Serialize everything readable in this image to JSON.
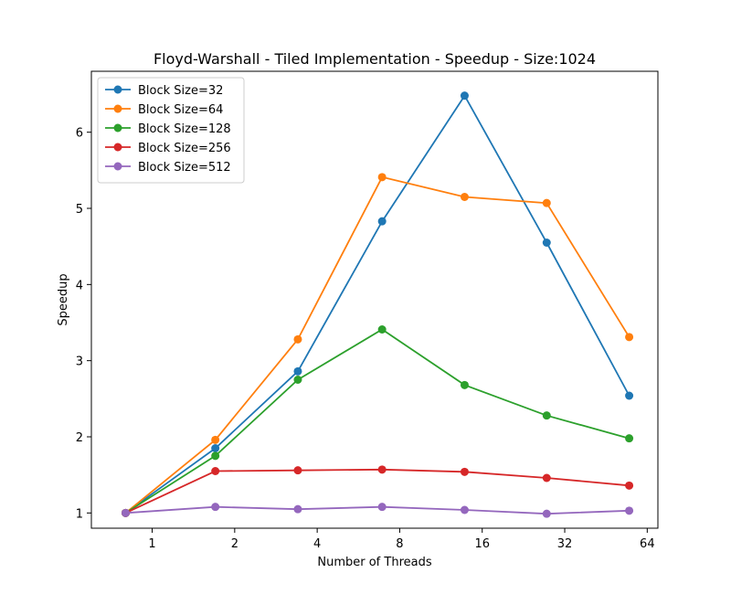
{
  "chart_data": {
    "type": "line",
    "title": "Floyd-Warshall - Tiled Implementation - Speedup - Size:1024",
    "xlabel": "Number of Threads",
    "ylabel": "Speedup",
    "x_scale": "log2",
    "x_ticks": [
      1,
      2,
      4,
      8,
      16,
      32,
      64
    ],
    "x_tick_labels": [
      "1",
      "2",
      "4",
      "8",
      "16",
      "32",
      "64"
    ],
    "y_ticks": [
      1,
      2,
      3,
      4,
      5,
      6
    ],
    "y_tick_labels": [
      "1",
      "2",
      "3",
      "4",
      "5",
      "6"
    ],
    "x": [
      0.8,
      1.7,
      3.4,
      6.9,
      13.8,
      27.5,
      55
    ],
    "xlim": [
      0.6,
      70
    ],
    "ylim": [
      0.8,
      6.8
    ],
    "grid": false,
    "legend_position": "upper-left",
    "series": [
      {
        "name": "Block Size=32",
        "color": "#1f77b4",
        "values": [
          1.0,
          1.85,
          2.86,
          4.83,
          6.48,
          4.55,
          2.54
        ]
      },
      {
        "name": "Block Size=64",
        "color": "#ff7f0e",
        "values": [
          1.0,
          1.96,
          3.28,
          5.41,
          5.15,
          5.07,
          3.31
        ]
      },
      {
        "name": "Block Size=128",
        "color": "#2ca02c",
        "values": [
          1.0,
          1.75,
          2.75,
          3.41,
          2.68,
          2.28,
          1.98
        ]
      },
      {
        "name": "Block Size=256",
        "color": "#d62728",
        "values": [
          1.0,
          1.55,
          1.56,
          1.57,
          1.54,
          1.46,
          1.36
        ]
      },
      {
        "name": "Block Size=512",
        "color": "#9467bd",
        "values": [
          1.0,
          1.08,
          1.05,
          1.08,
          1.04,
          0.99,
          1.03
        ]
      }
    ]
  }
}
